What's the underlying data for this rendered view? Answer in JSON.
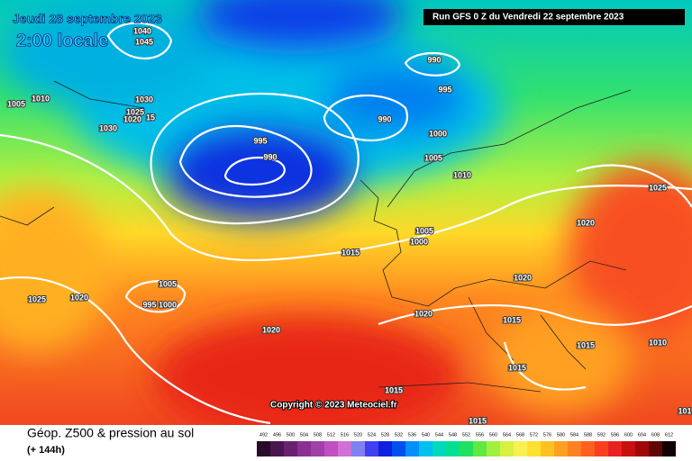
{
  "header": {
    "valid_date": "Jeudi 28 septembre 2023",
    "local_time": "2:00 locale",
    "run": "Run GFS 0 Z du Vendredi 22 septembre 2023"
  },
  "copyright": "Copyright © 2023 Meteociel.fr",
  "footer": {
    "title": "Géop. Z500 & pression au sol",
    "lead_time": "(+ 144h)"
  },
  "isobar_labels": [
    1040,
    1045,
    1010,
    1005,
    1030,
    1025,
    1020,
    15,
    1030,
    990,
    995,
    990,
    1000,
    995,
    990,
    1005,
    1010,
    1025,
    1020,
    1005,
    1000,
    1015,
    1005,
    1020,
    995,
    1000,
    1025,
    1020,
    1020,
    1015,
    1020,
    1015,
    1010,
    1015,
    1015,
    1015,
    101
  ],
  "legend": [
    {
      "value": 492,
      "color": "#2a0a2a"
    },
    {
      "value": 496,
      "color": "#4a1650"
    },
    {
      "value": 500,
      "color": "#6a2270"
    },
    {
      "value": 504,
      "color": "#8a3090"
    },
    {
      "value": 508,
      "color": "#a040a8"
    },
    {
      "value": 512,
      "color": "#c050c0"
    },
    {
      "value": 516,
      "color": "#d070d8"
    },
    {
      "value": 520,
      "color": "#8080f0"
    },
    {
      "value": 524,
      "color": "#4040f0"
    },
    {
      "value": 528,
      "color": "#1020e0"
    },
    {
      "value": 532,
      "color": "#0050f0"
    },
    {
      "value": 536,
      "color": "#0090f8"
    },
    {
      "value": 540,
      "color": "#00c0f0"
    },
    {
      "value": 544,
      "color": "#00d8c0"
    },
    {
      "value": 548,
      "color": "#00e090"
    },
    {
      "value": 552,
      "color": "#20e060"
    },
    {
      "value": 556,
      "color": "#60e840"
    },
    {
      "value": 560,
      "color": "#a0f040"
    },
    {
      "value": 564,
      "color": "#d8f040"
    },
    {
      "value": 568,
      "color": "#f8f050"
    },
    {
      "value": 572,
      "color": "#ffe030"
    },
    {
      "value": 576,
      "color": "#ffc020"
    },
    {
      "value": 580,
      "color": "#ffa020"
    },
    {
      "value": 584,
      "color": "#ff8020"
    },
    {
      "value": 588,
      "color": "#ff6020"
    },
    {
      "value": 592,
      "color": "#f84020"
    },
    {
      "value": 596,
      "color": "#e82020"
    },
    {
      "value": 600,
      "color": "#c81010"
    },
    {
      "value": 604,
      "color": "#a00808"
    },
    {
      "value": 608,
      "color": "#600404"
    },
    {
      "value": 612,
      "color": "#100000"
    }
  ]
}
